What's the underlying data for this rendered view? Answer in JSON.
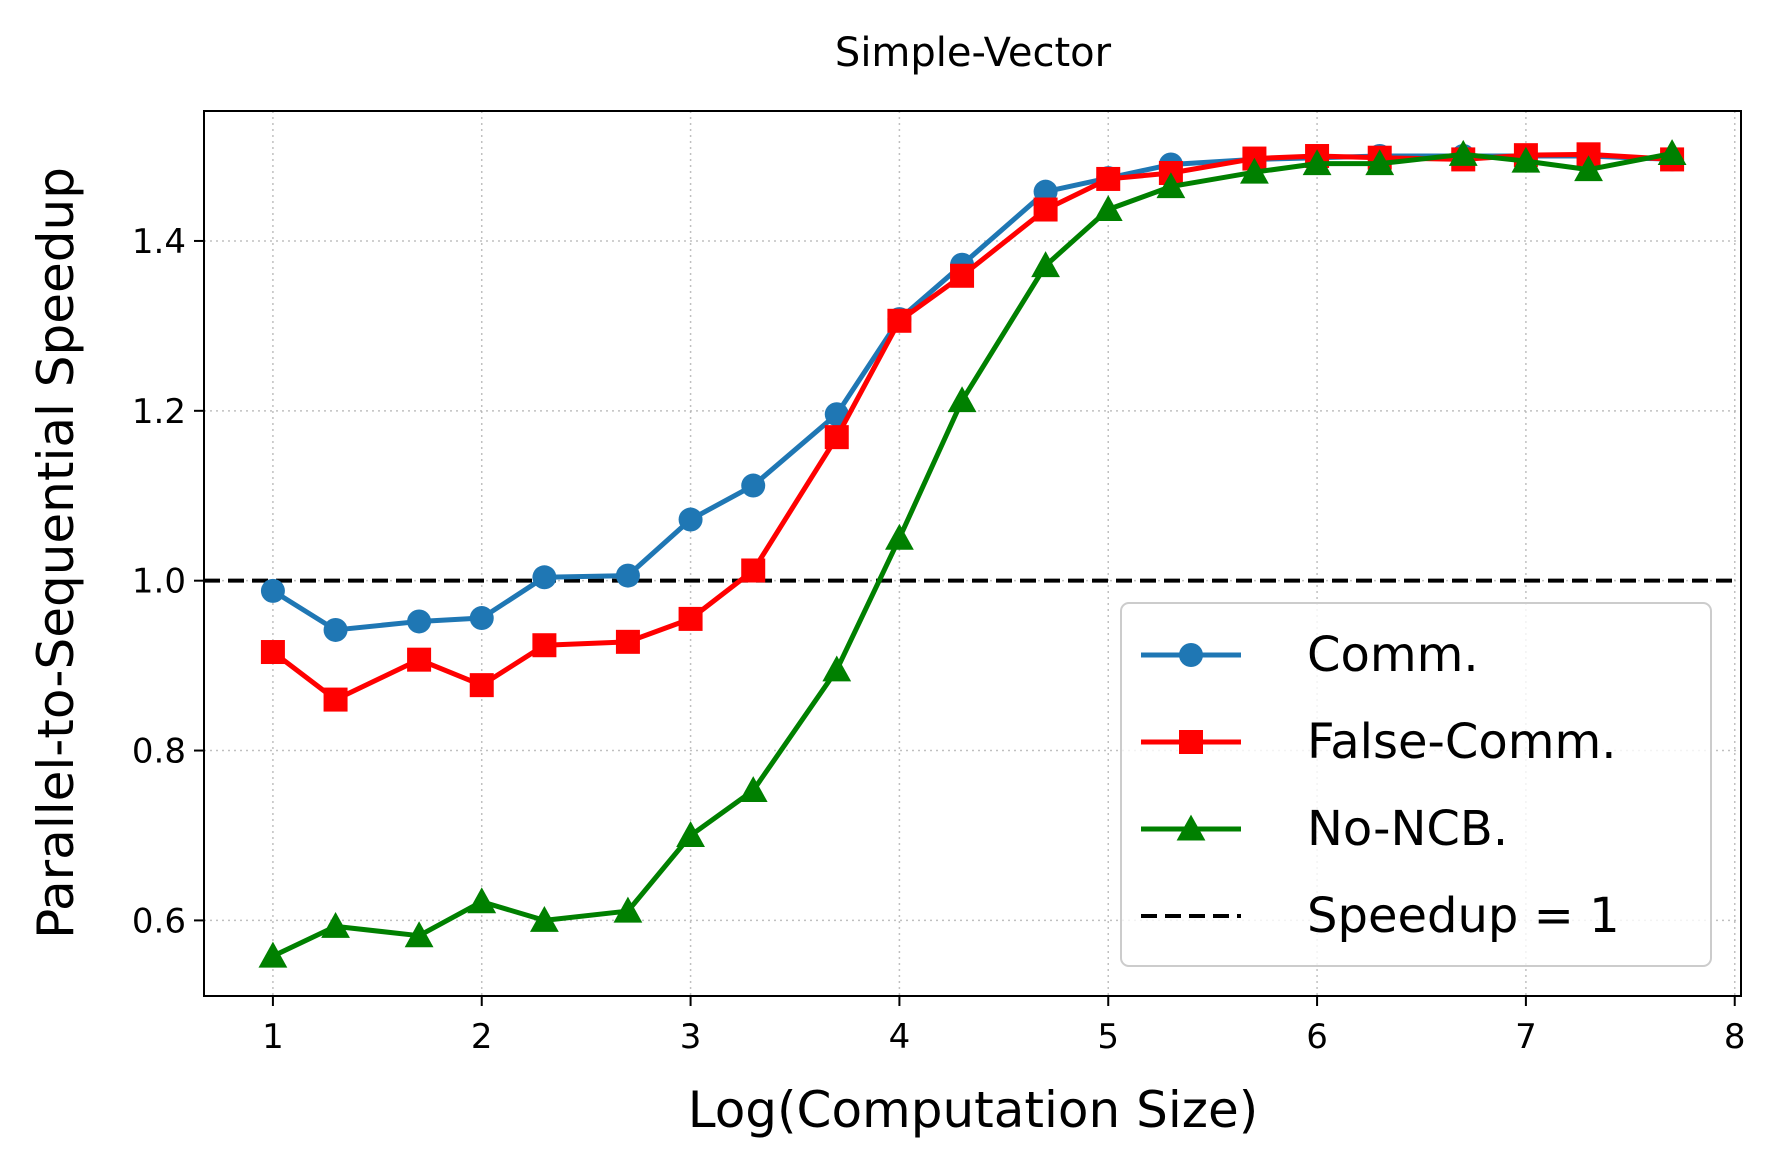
{
  "chart_data": {
    "type": "line",
    "title": "Simple-Vector",
    "xlabel": "Log(Computation Size)",
    "ylabel": "Parallel-to-Sequential Speedup",
    "xlim": [
      0.67,
      8.03
    ],
    "ylim": [
      0.511,
      1.553
    ],
    "x_ticks": [
      1,
      2,
      3,
      4,
      5,
      6,
      7,
      8
    ],
    "y_ticks": [
      0.6,
      0.8,
      1.0,
      1.2,
      1.4
    ],
    "x_tick_labels": [
      "1",
      "2",
      "3",
      "4",
      "5",
      "6",
      "7",
      "8"
    ],
    "y_tick_labels": [
      "0.6",
      "0.8",
      "1.0",
      "1.2",
      "1.4"
    ],
    "grid": true,
    "legend_position": "bottom-right",
    "x": [
      1.0,
      1.3,
      1.7,
      2.0,
      2.3,
      2.7,
      3.0,
      3.3,
      3.7,
      4.0,
      4.3,
      4.7,
      5.0,
      5.3,
      5.7,
      6.0,
      6.3,
      6.7,
      7.0,
      7.3,
      7.7
    ],
    "series": [
      {
        "name": "Comm.",
        "color": "#1f77b4",
        "marker": "circle",
        "values": [
          0.988,
          0.942,
          0.952,
          0.956,
          1.004,
          1.006,
          1.072,
          1.112,
          1.196,
          1.308,
          1.372,
          1.458,
          1.474,
          1.49,
          1.496,
          1.498,
          1.5,
          1.5,
          1.5,
          1.5,
          1.496
        ]
      },
      {
        "name": "False-Comm.",
        "color": "#ff0000",
        "marker": "square",
        "values": [
          0.916,
          0.86,
          0.907,
          0.877,
          0.924,
          0.928,
          0.955,
          1.012,
          1.169,
          1.306,
          1.359,
          1.437,
          1.473,
          1.48,
          1.497,
          1.5,
          1.498,
          1.496,
          1.501,
          1.502,
          1.496
        ]
      },
      {
        "name": "No-NCB.",
        "color": "#008000",
        "marker": "triangle",
        "values": [
          0.558,
          0.593,
          0.582,
          0.622,
          0.6,
          0.611,
          0.7,
          0.753,
          0.895,
          1.05,
          1.212,
          1.371,
          1.437,
          1.464,
          1.481,
          1.491,
          1.491,
          1.502,
          1.494,
          1.484,
          1.503
        ]
      }
    ],
    "reference_line": {
      "name": "Speedup = 1",
      "y": 1.0,
      "color": "#000000",
      "style": "dashed"
    }
  }
}
